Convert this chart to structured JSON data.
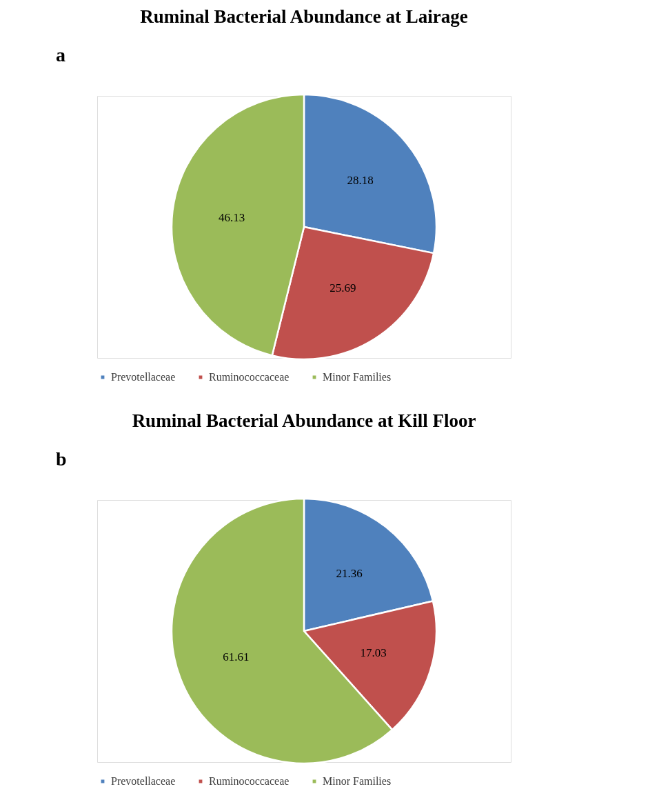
{
  "chart_data": [
    {
      "type": "pie",
      "title": "Ruminal Bacterial Abundance at Lairage",
      "annotations": [
        "a"
      ],
      "categories": [
        "Prevotellaceae",
        "Ruminococcaceae",
        "Minor Families"
      ],
      "values": [
        28.18,
        25.69,
        46.13
      ],
      "colors": [
        "#4f81bd",
        "#c0504d",
        "#9bbb59"
      ],
      "data_labels": true,
      "legend": "bottom"
    },
    {
      "type": "pie",
      "title": "Ruminal Bacterial Abundance at Kill Floor",
      "annotations": [
        "b"
      ],
      "categories": [
        "Prevotellaceae",
        "Ruminococcaceae",
        "Minor Families"
      ],
      "values": [
        21.36,
        17.03,
        61.61
      ],
      "colors": [
        "#4f81bd",
        "#c0504d",
        "#9bbb59"
      ],
      "data_labels": true,
      "legend": "bottom"
    }
  ]
}
